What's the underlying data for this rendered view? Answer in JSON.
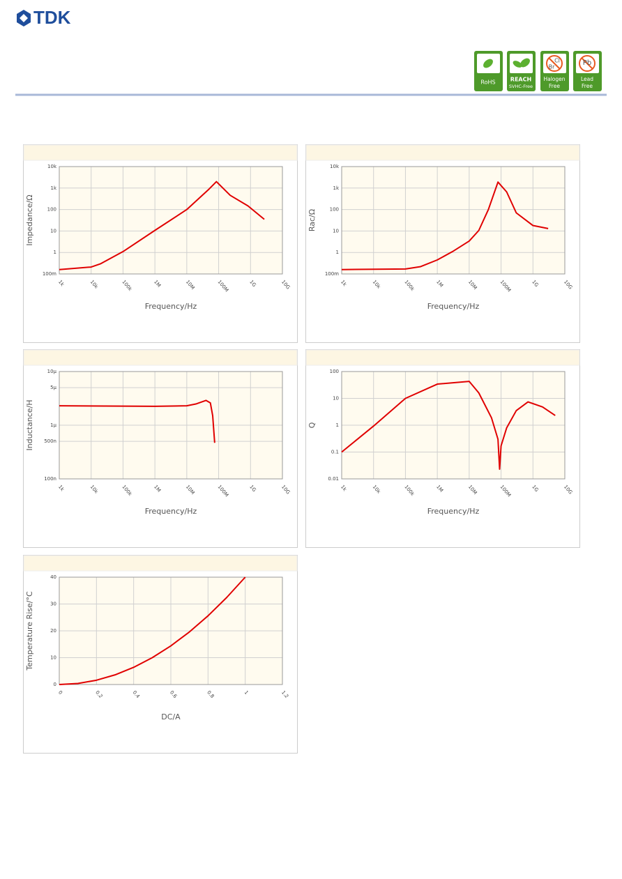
{
  "header": {
    "logo": "TDK",
    "badges": [
      [
        "RoHS"
      ],
      [
        "REACH",
        "SVHC-Free"
      ],
      [
        "Cl",
        "Br",
        "Halogen",
        "Free"
      ],
      [
        "Pb",
        "Lead",
        "Free"
      ]
    ]
  },
  "chart_data": [
    {
      "type": "line",
      "y_label": "Impedance/Ω",
      "x_label": "Frequency/Hz",
      "xscale": "log",
      "yscale": "log",
      "grid": true,
      "color": "#e00000",
      "x": [
        1000,
        10000,
        20000,
        100000,
        1000000,
        10000000,
        50000000,
        85000000,
        230000000,
        830000000,
        2700000000
      ],
      "values": [
        0.16,
        0.21,
        0.3,
        1.1,
        10.7,
        100,
        900,
        2000,
        460,
        148,
        35
      ],
      "xlim": [
        1000,
        10000000000
      ],
      "ylim": [
        0.1,
        10000
      ],
      "xticks": [
        {
          "value": 1000,
          "label": "1k"
        },
        {
          "value": 10000,
          "label": "10k"
        },
        {
          "value": 100000,
          "label": "100k"
        },
        {
          "value": 1000000,
          "label": "1M"
        },
        {
          "value": 10000000,
          "label": "10M"
        },
        {
          "value": 100000000,
          "label": "100M"
        },
        {
          "value": 1000000000,
          "label": "1G"
        },
        {
          "value": 10000000000,
          "label": "10G"
        }
      ],
      "yticks": [
        {
          "value": 0.1,
          "label": "100m"
        },
        1,
        10,
        100,
        {
          "value": 1000,
          "label": "1k"
        },
        {
          "value": 10000,
          "label": "10k"
        }
      ]
    },
    {
      "type": "line",
      "y_label": "Rac/Ω",
      "x_label": "Frequency/Hz",
      "xscale": "log",
      "yscale": "log",
      "grid": true,
      "color": "#e00000",
      "x": [
        1000,
        100000,
        300000,
        1000000,
        3000000,
        10000000,
        20000000,
        40000000,
        80000000,
        150000000,
        300000000,
        1000000000,
        3000000000
      ],
      "values": [
        0.16,
        0.17,
        0.22,
        0.45,
        1.1,
        3.4,
        10.6,
        100,
        1900,
        660,
        70,
        18,
        13
      ],
      "xlim": [
        1000,
        10000000000
      ],
      "ylim": [
        0.1,
        10000
      ],
      "xticks": [
        {
          "value": 1000,
          "label": "1k"
        },
        {
          "value": 10000,
          "label": "10k"
        },
        {
          "value": 100000,
          "label": "100k"
        },
        {
          "value": 1000000,
          "label": "1M"
        },
        {
          "value": 10000000,
          "label": "10M"
        },
        {
          "value": 100000000,
          "label": "100M"
        },
        {
          "value": 1000000000,
          "label": "1G"
        },
        {
          "value": 10000000000,
          "label": "10G"
        }
      ],
      "yticks": [
        {
          "value": 0.1,
          "label": "100m"
        },
        1,
        10,
        100,
        {
          "value": 1000,
          "label": "1k"
        },
        {
          "value": 10000,
          "label": "10k"
        }
      ]
    },
    {
      "type": "line",
      "y_label": "Inductance/H",
      "x_label": "Frequency/Hz",
      "xscale": "log",
      "yscale": "log",
      "grid": true,
      "color": "#e00000",
      "x": [
        1000,
        1000000,
        10000000,
        20000000,
        40000000,
        55000000,
        65000000,
        75000000
      ],
      "values": [
        2.3e-06,
        2.25e-06,
        2.3e-06,
        2.5e-06,
        2.9e-06,
        2.6e-06,
        1.5e-06,
        4.7e-07
      ],
      "xlim": [
        1000,
        10000000000
      ],
      "ylim": [
        1e-07,
        1e-05
      ],
      "xticks": [
        {
          "value": 1000,
          "label": "1k"
        },
        {
          "value": 10000,
          "label": "10k"
        },
        {
          "value": 100000,
          "label": "100k"
        },
        {
          "value": 1000000,
          "label": "1M"
        },
        {
          "value": 10000000,
          "label": "10M"
        },
        {
          "value": 100000000,
          "label": "100M"
        },
        {
          "value": 1000000000,
          "label": "1G"
        },
        {
          "value": 10000000000,
          "label": "10G"
        }
      ],
      "yticks": [
        {
          "value": 1e-07,
          "label": "100n"
        },
        {
          "value": 5e-07,
          "label": "500n"
        },
        {
          "value": 1e-06,
          "label": "1µ"
        },
        {
          "value": 5e-06,
          "label": "5µ"
        },
        {
          "value": 1e-05,
          "label": "10µ"
        }
      ]
    },
    {
      "type": "line",
      "y_label": "Q",
      "x_label": "Frequency/Hz",
      "xscale": "log",
      "yscale": "log",
      "grid": true,
      "color": "#e00000",
      "x": [
        1000,
        10000,
        100000,
        1000000,
        10000000,
        20000000,
        50000000,
        80000000,
        90000000,
        100000000,
        150000000,
        300000000,
        700000000,
        2000000000,
        5000000000
      ],
      "values": [
        0.1,
        0.93,
        10,
        34,
        43,
        16,
        1.9,
        0.3,
        0.023,
        0.17,
        0.8,
        3.5,
        7.4,
        4.8,
        2.3
      ],
      "xlim": [
        1000,
        10000000000
      ],
      "ylim": [
        0.01,
        100
      ],
      "xticks": [
        {
          "value": 1000,
          "label": "1k"
        },
        {
          "value": 10000,
          "label": "10k"
        },
        {
          "value": 100000,
          "label": "100k"
        },
        {
          "value": 1000000,
          "label": "1M"
        },
        {
          "value": 10000000,
          "label": "10M"
        },
        {
          "value": 100000000,
          "label": "100M"
        },
        {
          "value": 1000000000,
          "label": "1G"
        },
        {
          "value": 10000000000,
          "label": "10G"
        }
      ],
      "yticks": [
        0.01,
        0.1,
        1,
        10,
        100
      ]
    },
    {
      "type": "line",
      "y_label": "Temperature Rise/°C",
      "x_label": "DC/A",
      "xscale": "linear",
      "yscale": "linear",
      "grid": true,
      "color": "#e00000",
      "x": [
        0,
        0.1,
        0.2,
        0.3,
        0.4,
        0.5,
        0.6,
        0.7,
        0.8,
        0.9,
        1.0
      ],
      "values": [
        0,
        0.4,
        1.6,
        3.6,
        6.4,
        10,
        14.4,
        19.6,
        25.6,
        32.4,
        40
      ],
      "xlim": [
        0,
        1.2
      ],
      "ylim": [
        0,
        40
      ],
      "xticks": [
        0,
        0.2,
        0.4,
        0.6,
        0.8,
        1,
        1.2
      ],
      "yticks": [
        0,
        10,
        20,
        30,
        40
      ]
    }
  ]
}
